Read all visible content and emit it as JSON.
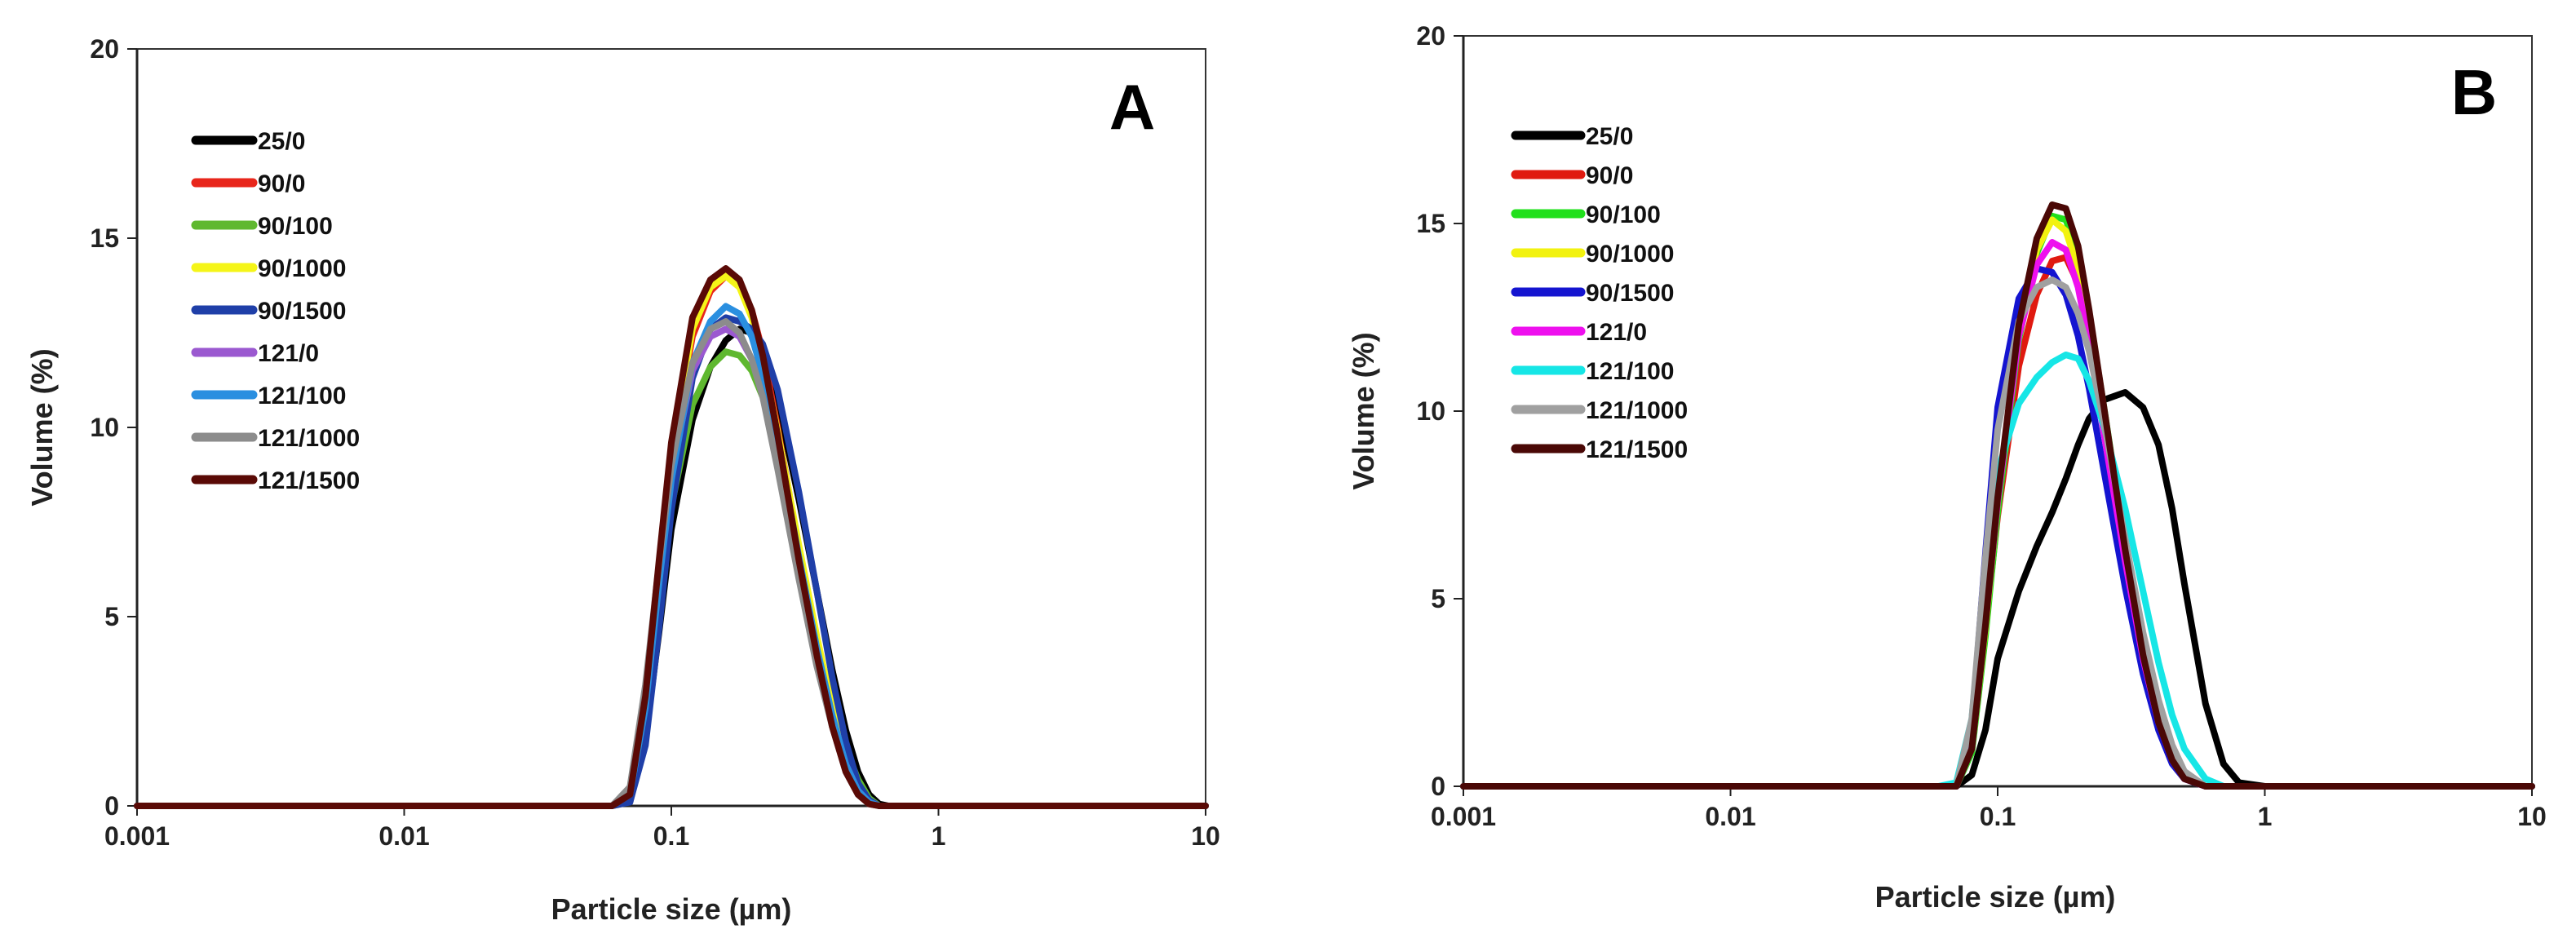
{
  "chart_data": [
    {
      "type": "line",
      "panel_label": "A",
      "xscale": "log",
      "xlim": [
        0.001,
        10
      ],
      "ylim": [
        0,
        20
      ],
      "xticks": [
        "0.001",
        "0.01",
        "0.1",
        "1",
        "10"
      ],
      "yticks": [
        "0",
        "5",
        "10",
        "15",
        "20"
      ],
      "xlabel": "Particle size (µm)",
      "ylabel": "Volume (%)",
      "legend_position": "top-left",
      "x": [
        0.06,
        0.07,
        0.08,
        0.09,
        0.1,
        0.12,
        0.14,
        0.16,
        0.18,
        0.2,
        0.22,
        0.25,
        0.3,
        0.35,
        0.4,
        0.45,
        0.5,
        0.55,
        0.6,
        0.65,
        0.7
      ],
      "series": [
        {
          "name": "25/0",
          "color": "#000000",
          "values": [
            0,
            0.1,
            1.8,
            4.6,
            7.3,
            10.2,
            11.6,
            12.3,
            12.6,
            12.5,
            12.0,
            10.7,
            8.1,
            5.7,
            3.6,
            2.0,
            0.9,
            0.3,
            0.05,
            0,
            0
          ]
        },
        {
          "name": "90/0",
          "color": "#e8261b",
          "values": [
            0,
            0.3,
            2.8,
            6.3,
            9.2,
            12.4,
            13.6,
            14.0,
            13.8,
            13.1,
            12.0,
            10.0,
            6.8,
            4.3,
            2.4,
            1.1,
            0.4,
            0.1,
            0,
            0,
            0
          ]
        },
        {
          "name": "90/100",
          "color": "#5fb82f",
          "values": [
            0,
            0.3,
            2.6,
            5.5,
            7.9,
            10.6,
            11.6,
            12.0,
            11.9,
            11.5,
            10.8,
            9.3,
            6.6,
            4.4,
            2.7,
            1.5,
            0.7,
            0.2,
            0,
            0,
            0
          ]
        },
        {
          "name": "90/1000",
          "color": "#f5f518",
          "values": [
            0,
            0.3,
            2.9,
            6.4,
            9.3,
            12.6,
            13.7,
            14.0,
            13.7,
            12.9,
            11.8,
            9.9,
            6.9,
            4.5,
            2.6,
            1.3,
            0.5,
            0.15,
            0,
            0,
            0
          ]
        },
        {
          "name": "90/1500",
          "color": "#1f3fa8",
          "values": [
            0,
            0.1,
            1.6,
            4.7,
            7.8,
            11.3,
            12.6,
            12.9,
            12.8,
            12.6,
            12.2,
            11.0,
            8.3,
            5.7,
            3.4,
            1.7,
            0.6,
            0.15,
            0,
            0,
            0
          ]
        },
        {
          "name": "121/0",
          "color": "#9b59d0",
          "values": [
            0,
            0.4,
            3.0,
            6.2,
            8.8,
            11.5,
            12.4,
            12.6,
            12.4,
            11.8,
            10.9,
            9.1,
            6.3,
            4.0,
            2.3,
            1.1,
            0.4,
            0.1,
            0,
            0,
            0
          ]
        },
        {
          "name": "121/100",
          "color": "#2a8fe0",
          "values": [
            0,
            0.3,
            2.6,
            5.9,
            8.6,
            11.7,
            12.8,
            13.2,
            13.0,
            12.4,
            11.4,
            9.6,
            6.6,
            4.2,
            2.4,
            1.1,
            0.4,
            0.1,
            0,
            0,
            0
          ]
        },
        {
          "name": "121/1000",
          "color": "#8c8c8c",
          "values": [
            0,
            0.5,
            3.2,
            6.4,
            9.0,
            11.7,
            12.6,
            12.8,
            12.5,
            11.8,
            10.8,
            8.9,
            6.0,
            3.7,
            2.1,
            0.9,
            0.3,
            0.05,
            0,
            0,
            0
          ]
        },
        {
          "name": "121/1500",
          "color": "#5a0a06",
          "values": [
            0,
            0.3,
            2.9,
            6.5,
            9.6,
            12.9,
            13.9,
            14.2,
            13.9,
            13.1,
            11.9,
            9.8,
            6.5,
            4.0,
            2.1,
            0.9,
            0.3,
            0.05,
            0,
            0,
            0
          ]
        }
      ]
    },
    {
      "type": "line",
      "panel_label": "B",
      "xscale": "log",
      "xlim": [
        0.001,
        10
      ],
      "ylim": [
        0,
        20
      ],
      "xticks": [
        "0.001",
        "0.01",
        "0.1",
        "1",
        "10"
      ],
      "yticks": [
        "0",
        "5",
        "10",
        "15",
        "20"
      ],
      "xlabel": "Particle size (µm)",
      "ylabel": "Volume (%)",
      "legend_position": "top-left",
      "x": [
        0.06,
        0.07,
        0.08,
        0.09,
        0.1,
        0.12,
        0.14,
        0.16,
        0.18,
        0.2,
        0.22,
        0.25,
        0.3,
        0.35,
        0.4,
        0.45,
        0.5,
        0.6,
        0.7,
        0.8,
        1.0
      ],
      "series": [
        {
          "name": "25/0",
          "color": "#000000",
          "values": [
            0,
            0,
            0.3,
            1.5,
            3.4,
            5.2,
            6.4,
            7.3,
            8.2,
            9.1,
            9.8,
            10.3,
            10.5,
            10.1,
            9.1,
            7.4,
            5.4,
            2.2,
            0.6,
            0.1,
            0
          ]
        },
        {
          "name": "90/0",
          "color": "#e01a10",
          "values": [
            0,
            0,
            1.1,
            4.2,
            7.2,
            11.2,
            13.1,
            14.0,
            14.1,
            13.4,
            12.0,
            9.7,
            6.3,
            3.7,
            2.0,
            0.9,
            0.3,
            0,
            0,
            0,
            0
          ]
        },
        {
          "name": "90/100",
          "color": "#21e01c",
          "values": [
            0,
            0,
            0.9,
            4.0,
            7.3,
            11.9,
            14.2,
            15.2,
            15.1,
            14.2,
            12.6,
            10.1,
            6.4,
            3.7,
            1.9,
            0.8,
            0.3,
            0,
            0,
            0,
            0
          ]
        },
        {
          "name": "90/1000",
          "color": "#f2f20f",
          "values": [
            0,
            0,
            1.0,
            4.2,
            7.6,
            12.2,
            14.3,
            15.1,
            14.8,
            13.8,
            12.2,
            9.8,
            6.3,
            3.6,
            1.9,
            0.8,
            0.3,
            0,
            0,
            0,
            0
          ]
        },
        {
          "name": "90/1500",
          "color": "#1414d0",
          "values": [
            0,
            0,
            1.6,
            6.2,
            10.1,
            13.0,
            13.8,
            13.7,
            13.1,
            12.0,
            10.6,
            8.4,
            5.3,
            3.0,
            1.5,
            0.6,
            0.2,
            0,
            0,
            0,
            0
          ]
        },
        {
          "name": "121/0",
          "color": "#ee10ee",
          "values": [
            0,
            0,
            1.0,
            4.3,
            7.6,
            12.0,
            13.9,
            14.5,
            14.3,
            13.3,
            11.8,
            9.4,
            6.0,
            3.4,
            1.7,
            0.7,
            0.2,
            0,
            0,
            0,
            0
          ]
        },
        {
          "name": "121/100",
          "color": "#16e6e6",
          "values": [
            0,
            0.1,
            1.8,
            5.8,
            8.4,
            10.2,
            10.9,
            11.3,
            11.5,
            11.4,
            10.8,
            9.6,
            7.4,
            5.2,
            3.3,
            1.9,
            1.0,
            0.2,
            0,
            0,
            0
          ]
        },
        {
          "name": "121/1000",
          "color": "#a0a0a0",
          "values": [
            0,
            0,
            1.8,
            6.1,
            9.5,
            12.4,
            13.3,
            13.5,
            13.3,
            12.6,
            11.6,
            9.7,
            6.6,
            4.1,
            2.3,
            1.1,
            0.4,
            0,
            0,
            0,
            0
          ]
        },
        {
          "name": "121/1500",
          "color": "#4a0806",
          "values": [
            0,
            0,
            1.0,
            4.3,
            7.7,
            12.3,
            14.6,
            15.5,
            15.4,
            14.4,
            12.7,
            10.1,
            6.3,
            3.5,
            1.7,
            0.7,
            0.2,
            0,
            0,
            0,
            0
          ]
        }
      ]
    }
  ]
}
